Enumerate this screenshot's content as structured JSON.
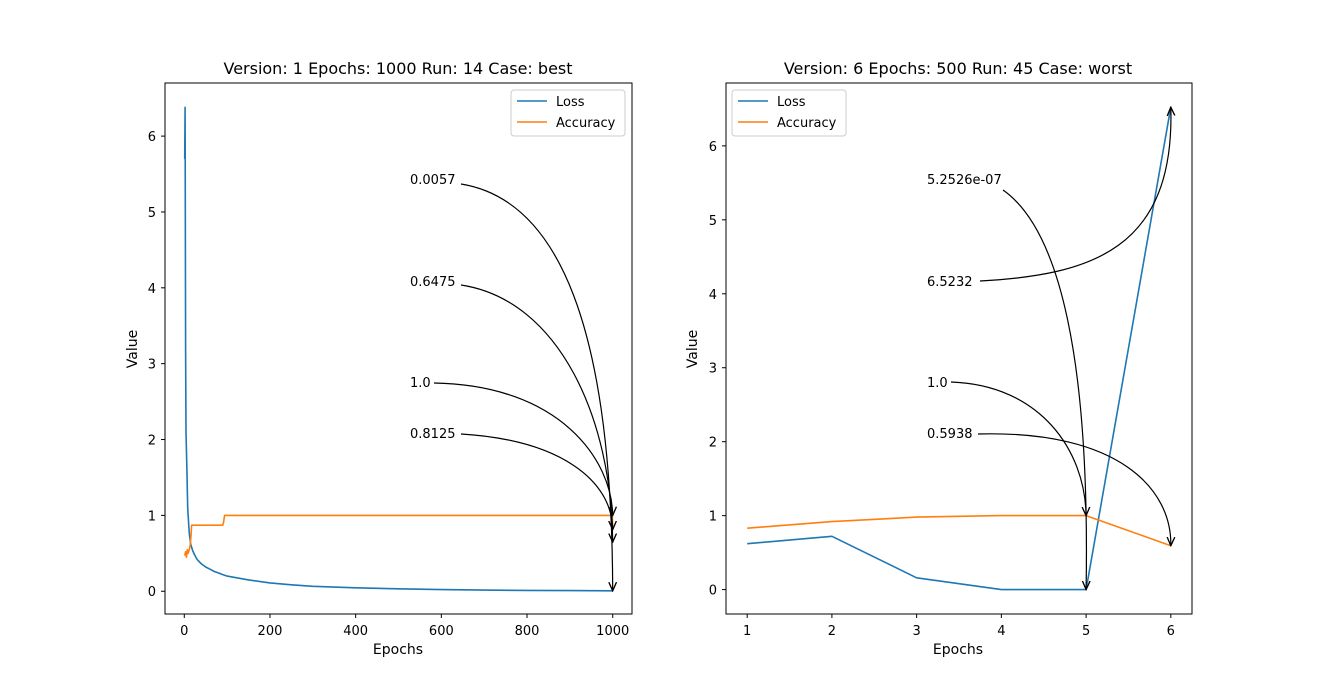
{
  "chart_data": [
    {
      "type": "line",
      "title": "Version: 1 Epochs: 1000 Run: 14 Case: best",
      "xlabel": "Epochs",
      "ylabel": "Value",
      "xlim": [
        -45,
        1045
      ],
      "ylim": [
        -0.3,
        6.7
      ],
      "xticks": [
        0,
        200,
        400,
        600,
        800,
        1000
      ],
      "yticks": [
        0,
        1,
        2,
        3,
        4,
        5,
        6
      ],
      "legend": "upper right",
      "series": [
        {
          "name": "Loss",
          "color": "#1f77b4",
          "points": [
            [
              1,
              5.7
            ],
            [
              2,
              6.38
            ],
            [
              3,
              3.2
            ],
            [
              4,
              2.1
            ],
            [
              6,
              1.6
            ],
            [
              8,
              1.1
            ],
            [
              10,
              0.9
            ],
            [
              12,
              0.75
            ],
            [
              15,
              0.62
            ],
            [
              20,
              0.53
            ],
            [
              25,
              0.47
            ],
            [
              30,
              0.42
            ],
            [
              40,
              0.36
            ],
            [
              50,
              0.32
            ],
            [
              60,
              0.29
            ],
            [
              70,
              0.26
            ],
            [
              80,
              0.24
            ],
            [
              90,
              0.22
            ],
            [
              100,
              0.2
            ],
            [
              150,
              0.15
            ],
            [
              200,
              0.11
            ],
            [
              250,
              0.085
            ],
            [
              300,
              0.065
            ],
            [
              400,
              0.045
            ],
            [
              500,
              0.032
            ],
            [
              600,
              0.022
            ],
            [
              700,
              0.015
            ],
            [
              800,
              0.011
            ],
            [
              900,
              0.008
            ],
            [
              999,
              0.006
            ],
            [
              1000,
              0.0057
            ]
          ]
        },
        {
          "name": "Accuracy",
          "color": "#ff7f0e",
          "points": [
            [
              1,
              0.47
            ],
            [
              3,
              0.52
            ],
            [
              5,
              0.45
            ],
            [
              7,
              0.55
            ],
            [
              9,
              0.5
            ],
            [
              12,
              0.55
            ],
            [
              14,
              0.62
            ],
            [
              16,
              0.75
            ],
            [
              17,
              0.87
            ],
            [
              90,
              0.87
            ],
            [
              92,
              0.92
            ],
            [
              94,
              1.0
            ],
            [
              999,
              1.0
            ],
            [
              1000,
              0.8125
            ]
          ]
        }
      ],
      "annotations": [
        {
          "text": "0.0057",
          "x": 1000,
          "y": 0.0057
        },
        {
          "text": "0.6475",
          "x": 1000,
          "y": 0.6475
        },
        {
          "text": "1.0",
          "x": 1000,
          "y": 1.0
        },
        {
          "text": "0.8125",
          "x": 1000,
          "y": 0.8125
        }
      ]
    },
    {
      "type": "line",
      "title": "Version: 6 Epochs: 500 Run: 45 Case: worst",
      "xlabel": "Epochs",
      "ylabel": "Value",
      "xlim": [
        0.75,
        6.25
      ],
      "ylim": [
        -0.33,
        6.85
      ],
      "xticks": [
        1,
        2,
        3,
        4,
        5,
        6
      ],
      "yticks": [
        0,
        1,
        2,
        3,
        4,
        5,
        6
      ],
      "legend": "upper left",
      "series": [
        {
          "name": "Loss",
          "color": "#1f77b4",
          "points": [
            [
              1,
              0.62
            ],
            [
              2,
              0.72
            ],
            [
              3,
              0.16
            ],
            [
              4,
              0.0
            ],
            [
              5,
              0.0
            ],
            [
              6,
              6.5232
            ]
          ]
        },
        {
          "name": "Accuracy",
          "color": "#ff7f0e",
          "points": [
            [
              1,
              0.83
            ],
            [
              2,
              0.92
            ],
            [
              3,
              0.98
            ],
            [
              4,
              1.0
            ],
            [
              5,
              1.0
            ],
            [
              6,
              0.5938
            ]
          ]
        }
      ],
      "annotations": [
        {
          "text": "5.2526e-07",
          "x": 5,
          "y": 0.0
        },
        {
          "text": "6.5232",
          "x": 6,
          "y": 6.5232
        },
        {
          "text": "1.0",
          "x": 5,
          "y": 1.0
        },
        {
          "text": "0.5938",
          "x": 6,
          "y": 0.5938
        }
      ]
    }
  ]
}
